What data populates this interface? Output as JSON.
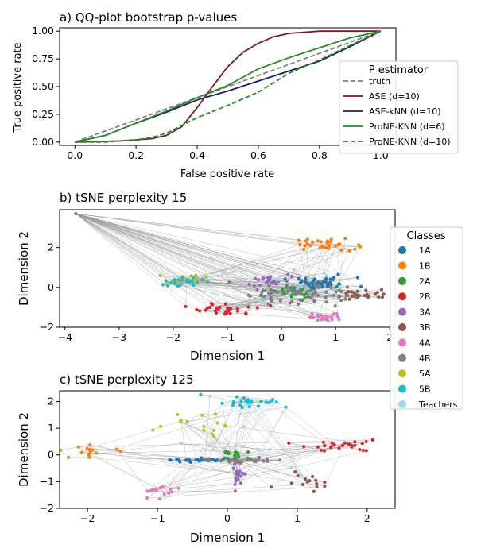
{
  "chart_data": [
    {
      "type": "line",
      "title": "a) QQ-plot bootstrap p-values",
      "xlabel": "False positive rate",
      "ylabel": "True positive rate",
      "xlim": [
        -0.05,
        1.05
      ],
      "ylim": [
        -0.03,
        1.03
      ],
      "xticks": [
        0.0,
        0.2,
        0.4,
        0.6,
        0.8,
        1.0
      ],
      "yticks": [
        0.0,
        0.25,
        0.5,
        0.75,
        1.0
      ],
      "xtick_labels": [
        "0.0",
        "0.2",
        "0.4",
        "0.6",
        "0.8",
        "1.0"
      ],
      "ytick_labels": [
        "0.00",
        "0.25",
        "0.50",
        "0.75",
        "1.00"
      ],
      "legend_title": "P estimator",
      "legend_position": "right",
      "series": [
        {
          "name": "truth",
          "color": "#808080",
          "dash": "dashed",
          "x": [
            0,
            1
          ],
          "y": [
            0,
            1
          ]
        },
        {
          "name": "ASE (d=10)",
          "color": "#7b1c1c",
          "dash": "solid",
          "x": [
            0,
            0.15,
            0.25,
            0.3,
            0.35,
            0.4,
            0.45,
            0.5,
            0.55,
            0.6,
            0.65,
            0.7,
            0.8,
            0.9,
            1.0
          ],
          "y": [
            0,
            0.01,
            0.03,
            0.06,
            0.14,
            0.31,
            0.5,
            0.68,
            0.81,
            0.89,
            0.95,
            0.98,
            1.0,
            1.0,
            1.0
          ]
        },
        {
          "name": "ASE-kNN (d=10)",
          "color": "#1c1c6b",
          "dash": "solid",
          "x": [
            0,
            0.1,
            0.2,
            0.3,
            0.4,
            0.5,
            0.6,
            0.7,
            0.8,
            0.9,
            1.0
          ],
          "y": [
            0,
            0.06,
            0.17,
            0.27,
            0.38,
            0.46,
            0.55,
            0.64,
            0.73,
            0.86,
            1.0
          ]
        },
        {
          "name": "ProNE-KNN (d=6)",
          "color": "#2a8a2a",
          "dash": "solid",
          "x": [
            0,
            0.1,
            0.2,
            0.3,
            0.4,
            0.5,
            0.6,
            0.7,
            0.8,
            0.9,
            1.0
          ],
          "y": [
            0,
            0.06,
            0.17,
            0.28,
            0.4,
            0.51,
            0.66,
            0.76,
            0.85,
            0.94,
            1.0
          ]
        },
        {
          "name": "ProNE-KNN (d=10)",
          "color": "#2a8a2a",
          "dash": "dashed",
          "x": [
            0,
            0.1,
            0.2,
            0.25,
            0.3,
            0.35,
            0.4,
            0.5,
            0.6,
            0.7,
            0.8,
            0.9,
            1.0
          ],
          "y": [
            0,
            0.0,
            0.02,
            0.04,
            0.08,
            0.15,
            0.22,
            0.33,
            0.45,
            0.62,
            0.74,
            0.87,
            1.0
          ]
        }
      ]
    },
    {
      "type": "scatter",
      "title": "b) tSNE perplexity 15",
      "xlabel": "Dimension 1",
      "ylabel": "Dimension 2",
      "xlim": [
        -4.1,
        2.1
      ],
      "ylim": [
        -2.0,
        3.9
      ],
      "xticks": [
        -4,
        -3,
        -2,
        -1,
        0,
        1,
        2
      ],
      "yticks": [
        -2,
        0,
        2
      ],
      "xtick_labels": [
        "−4",
        "−3",
        "−2",
        "−1",
        "0",
        "1",
        "2"
      ],
      "ytick_labels": [
        "−2",
        "0",
        "2"
      ],
      "legend_title": "Classes",
      "legend_position": "right",
      "clusters": [
        {
          "class": "1A",
          "cx": 0.7,
          "cy": 0.2,
          "sx": 0.35,
          "sy": 0.15,
          "n": 45
        },
        {
          "class": "1B",
          "cx": 0.8,
          "cy": 2.15,
          "sx": 0.28,
          "sy": 0.15,
          "n": 30
        },
        {
          "class": "2A",
          "cx": 0.15,
          "cy": -0.3,
          "sx": 0.25,
          "sy": 0.18,
          "n": 25
        },
        {
          "class": "2B",
          "cx": -1.0,
          "cy": -1.1,
          "sx": 0.3,
          "sy": 0.15,
          "n": 30
        },
        {
          "class": "3A",
          "cx": -0.15,
          "cy": 0.3,
          "sx": 0.25,
          "sy": 0.3,
          "n": 25
        },
        {
          "class": "3B",
          "cx": 1.5,
          "cy": -0.35,
          "sx": 0.25,
          "sy": 0.12,
          "n": 25
        },
        {
          "class": "4A",
          "cx": 0.85,
          "cy": -1.45,
          "sx": 0.2,
          "sy": 0.12,
          "n": 20
        },
        {
          "class": "4B",
          "cx": 0.3,
          "cy": -0.35,
          "sx": 0.45,
          "sy": 0.3,
          "n": 60
        },
        {
          "class": "5A",
          "cx": -1.75,
          "cy": 0.4,
          "sx": 0.18,
          "sy": 0.12,
          "n": 20
        },
        {
          "class": "5B",
          "cx": -1.85,
          "cy": 0.25,
          "sx": 0.2,
          "sy": 0.12,
          "n": 25
        },
        {
          "class": "Teachers",
          "cx": 0.3,
          "cy": 0.1,
          "sx": 0.5,
          "sy": 0.4,
          "n": 10
        }
      ],
      "outlier": {
        "class": "4B",
        "x": -3.8,
        "y": 3.7
      }
    },
    {
      "type": "scatter",
      "title": "c) tSNE perplexity 125",
      "xlabel": "Dimension 1",
      "ylabel": "Dimension 2",
      "xlim": [
        -2.4,
        2.4
      ],
      "ylim": [
        -2.0,
        2.4
      ],
      "xticks": [
        -2,
        -1,
        0,
        1,
        2
      ],
      "yticks": [
        -2,
        -1,
        0,
        1,
        2
      ],
      "xtick_labels": [
        "−2",
        "−1",
        "0",
        "1",
        "2"
      ],
      "ytick_labels": [
        "−2",
        "−1",
        "0",
        "1",
        "2"
      ],
      "clusters": [
        {
          "class": "1A",
          "cx": -0.4,
          "cy": -0.2,
          "sx": 0.3,
          "sy": 0.04,
          "n": 30
        },
        {
          "class": "1B",
          "cx": -1.95,
          "cy": 0.15,
          "sx": 0.2,
          "sy": 0.1,
          "n": 15
        },
        {
          "class": "2A",
          "cx": 0.15,
          "cy": 0.0,
          "sx": 0.1,
          "sy": 0.08,
          "n": 15
        },
        {
          "class": "2B",
          "cx": 1.6,
          "cy": 0.35,
          "sx": 0.3,
          "sy": 0.12,
          "n": 25
        },
        {
          "class": "3A",
          "cx": 0.15,
          "cy": -0.8,
          "sx": 0.05,
          "sy": 0.3,
          "n": 20
        },
        {
          "class": "3B",
          "cx": 1.15,
          "cy": -0.85,
          "sx": 0.22,
          "sy": 0.2,
          "n": 15
        },
        {
          "class": "4A",
          "cx": -0.95,
          "cy": -1.45,
          "sx": 0.2,
          "sy": 0.2,
          "n": 15
        },
        {
          "class": "4B",
          "cx": 0.25,
          "cy": -0.2,
          "sx": 0.3,
          "sy": 0.06,
          "n": 30
        },
        {
          "class": "5A",
          "cx": -0.3,
          "cy": 1.2,
          "sx": 0.3,
          "sy": 0.25,
          "n": 15
        },
        {
          "class": "5B",
          "cx": 0.25,
          "cy": 2.0,
          "sx": 0.3,
          "sy": 0.12,
          "n": 25
        },
        {
          "class": "Teachers",
          "cx": 0.2,
          "cy": 0.5,
          "sx": 0.4,
          "sy": 0.6,
          "n": 8
        }
      ]
    }
  ],
  "classes": [
    {
      "name": "1A",
      "color": "#1f77b4"
    },
    {
      "name": "1B",
      "color": "#ff7f0e"
    },
    {
      "name": "2A",
      "color": "#2ca02c"
    },
    {
      "name": "2B",
      "color": "#d62728"
    },
    {
      "name": "3A",
      "color": "#9467bd"
    },
    {
      "name": "3B",
      "color": "#8c564b"
    },
    {
      "name": "4A",
      "color": "#e377c2"
    },
    {
      "name": "4B",
      "color": "#7f7f7f"
    },
    {
      "name": "5A",
      "color": "#bcbd22"
    },
    {
      "name": "5B",
      "color": "#17becf"
    },
    {
      "name": "Teachers",
      "color": "#9edae5"
    }
  ]
}
